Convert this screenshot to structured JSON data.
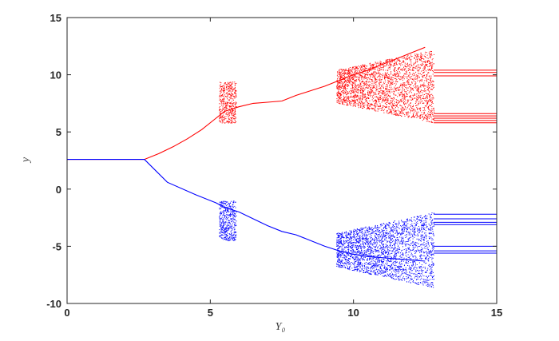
{
  "chart_data": {
    "type": "scatter",
    "xlabel": "Y₀",
    "ylabel": "y",
    "xlim": [
      0,
      15
    ],
    "ylim": [
      -10,
      15
    ],
    "xticks": [
      0,
      5,
      10,
      15
    ],
    "yticks": [
      -10,
      -5,
      0,
      5,
      10,
      15
    ],
    "grid": false,
    "series": [
      {
        "color": "#ff0000",
        "branch": "upper",
        "x": [
          0,
          2.7,
          3.2,
          3.7,
          4.2,
          4.7,
          5.2,
          5.5,
          6.0,
          6.5,
          7.0,
          7.5,
          8.0,
          8.5,
          9.0,
          9.5,
          10.0,
          10.5,
          11.0,
          11.5,
          12.0,
          12.5
        ],
        "y": [
          2.6,
          2.6,
          3.1,
          3.7,
          4.4,
          5.2,
          6.2,
          6.8,
          7.2,
          7.5,
          7.6,
          7.7,
          8.2,
          8.6,
          9.0,
          9.5,
          10.0,
          10.4,
          10.9,
          11.4,
          11.9,
          12.4
        ],
        "chaotic_regions": [
          {
            "x_range": [
              5.3,
              5.9
            ],
            "y_range": [
              5.8,
              9.4
            ]
          },
          {
            "x_range": [
              9.4,
              12.8
            ],
            "y_range": [
              5.8,
              12.2
            ]
          }
        ],
        "final_levels": [
          10.4,
          10.2,
          9.9,
          6.6,
          6.4,
          6.2,
          6.0,
          5.8
        ]
      },
      {
        "color": "#0000ff",
        "branch": "lower",
        "x": [
          0,
          2.7,
          3.5,
          4.5,
          5.2,
          5.5,
          6.0,
          6.5,
          7.0,
          7.5,
          8.0,
          8.5,
          9.0,
          9.5,
          10.0,
          10.5,
          11.0,
          11.5,
          12.0,
          12.5
        ],
        "y": [
          2.6,
          2.6,
          0.6,
          -0.5,
          -1.2,
          -1.6,
          -2.0,
          -2.6,
          -3.2,
          -3.7,
          -4.0,
          -4.5,
          -5.0,
          -5.4,
          -5.7,
          -5.9,
          -6.0,
          -6.1,
          -6.2,
          -6.3
        ],
        "chaotic_regions": [
          {
            "x_range": [
              5.3,
              5.9
            ],
            "y_range": [
              -4.5,
              -1.0
            ]
          },
          {
            "x_range": [
              9.4,
              12.8
            ],
            "y_range": [
              -8.6,
              -2.0
            ]
          }
        ],
        "final_levels": [
          -2.2,
          -2.6,
          -2.9,
          -3.1,
          -5.0,
          -5.4,
          -5.6
        ]
      }
    ]
  }
}
